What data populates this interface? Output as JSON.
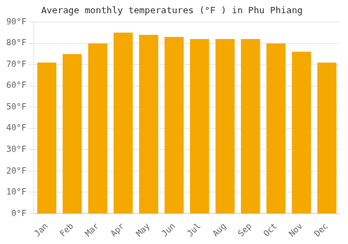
{
  "chart_data": {
    "type": "bar",
    "title": "Average monthly temperatures (°F ) in Phu Phiang",
    "categories": [
      "Jan",
      "Feb",
      "Mar",
      "Apr",
      "May",
      "Jun",
      "Jul",
      "Aug",
      "Sep",
      "Oct",
      "Nov",
      "Dec"
    ],
    "values": [
      71,
      75,
      80,
      85,
      84,
      83,
      82,
      82,
      82,
      80,
      76,
      71
    ],
    "color": "#F5A800",
    "ylim": [
      0,
      90
    ],
    "yticks": [
      {
        "value": 0,
        "label": "0°F"
      },
      {
        "value": 10,
        "label": "10°F"
      },
      {
        "value": 20,
        "label": "20°F"
      },
      {
        "value": 30,
        "label": "30°F"
      },
      {
        "value": 40,
        "label": "40°F"
      },
      {
        "value": 50,
        "label": "50°F"
      },
      {
        "value": 60,
        "label": "60°F"
      },
      {
        "value": 70,
        "label": "70°F"
      },
      {
        "value": 80,
        "label": "80°F"
      },
      {
        "value": 90,
        "label": "90°F"
      }
    ],
    "grid": true
  }
}
